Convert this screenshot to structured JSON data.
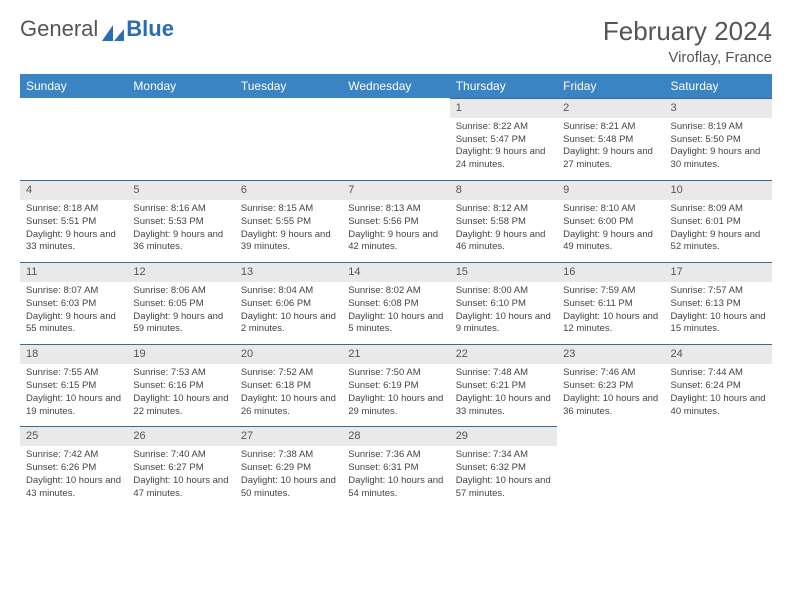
{
  "brand": {
    "part1": "General",
    "part2": "Blue"
  },
  "title": "February 2024",
  "location": "Viroflay, France",
  "colors": {
    "header_bg": "#3a84c4",
    "day_num_bg": "#e9e9e9",
    "day_num_border": "#3a6a9a",
    "brand_blue": "#2a6db5",
    "text": "#444"
  },
  "day_names": [
    "Sunday",
    "Monday",
    "Tuesday",
    "Wednesday",
    "Thursday",
    "Friday",
    "Saturday"
  ],
  "weeks": [
    [
      null,
      null,
      null,
      null,
      {
        "n": "1",
        "sr": "Sunrise: 8:22 AM",
        "ss": "Sunset: 5:47 PM",
        "dl": "Daylight: 9 hours and 24 minutes."
      },
      {
        "n": "2",
        "sr": "Sunrise: 8:21 AM",
        "ss": "Sunset: 5:48 PM",
        "dl": "Daylight: 9 hours and 27 minutes."
      },
      {
        "n": "3",
        "sr": "Sunrise: 8:19 AM",
        "ss": "Sunset: 5:50 PM",
        "dl": "Daylight: 9 hours and 30 minutes."
      }
    ],
    [
      {
        "n": "4",
        "sr": "Sunrise: 8:18 AM",
        "ss": "Sunset: 5:51 PM",
        "dl": "Daylight: 9 hours and 33 minutes."
      },
      {
        "n": "5",
        "sr": "Sunrise: 8:16 AM",
        "ss": "Sunset: 5:53 PM",
        "dl": "Daylight: 9 hours and 36 minutes."
      },
      {
        "n": "6",
        "sr": "Sunrise: 8:15 AM",
        "ss": "Sunset: 5:55 PM",
        "dl": "Daylight: 9 hours and 39 minutes."
      },
      {
        "n": "7",
        "sr": "Sunrise: 8:13 AM",
        "ss": "Sunset: 5:56 PM",
        "dl": "Daylight: 9 hours and 42 minutes."
      },
      {
        "n": "8",
        "sr": "Sunrise: 8:12 AM",
        "ss": "Sunset: 5:58 PM",
        "dl": "Daylight: 9 hours and 46 minutes."
      },
      {
        "n": "9",
        "sr": "Sunrise: 8:10 AM",
        "ss": "Sunset: 6:00 PM",
        "dl": "Daylight: 9 hours and 49 minutes."
      },
      {
        "n": "10",
        "sr": "Sunrise: 8:09 AM",
        "ss": "Sunset: 6:01 PM",
        "dl": "Daylight: 9 hours and 52 minutes."
      }
    ],
    [
      {
        "n": "11",
        "sr": "Sunrise: 8:07 AM",
        "ss": "Sunset: 6:03 PM",
        "dl": "Daylight: 9 hours and 55 minutes."
      },
      {
        "n": "12",
        "sr": "Sunrise: 8:06 AM",
        "ss": "Sunset: 6:05 PM",
        "dl": "Daylight: 9 hours and 59 minutes."
      },
      {
        "n": "13",
        "sr": "Sunrise: 8:04 AM",
        "ss": "Sunset: 6:06 PM",
        "dl": "Daylight: 10 hours and 2 minutes."
      },
      {
        "n": "14",
        "sr": "Sunrise: 8:02 AM",
        "ss": "Sunset: 6:08 PM",
        "dl": "Daylight: 10 hours and 5 minutes."
      },
      {
        "n": "15",
        "sr": "Sunrise: 8:00 AM",
        "ss": "Sunset: 6:10 PM",
        "dl": "Daylight: 10 hours and 9 minutes."
      },
      {
        "n": "16",
        "sr": "Sunrise: 7:59 AM",
        "ss": "Sunset: 6:11 PM",
        "dl": "Daylight: 10 hours and 12 minutes."
      },
      {
        "n": "17",
        "sr": "Sunrise: 7:57 AM",
        "ss": "Sunset: 6:13 PM",
        "dl": "Daylight: 10 hours and 15 minutes."
      }
    ],
    [
      {
        "n": "18",
        "sr": "Sunrise: 7:55 AM",
        "ss": "Sunset: 6:15 PM",
        "dl": "Daylight: 10 hours and 19 minutes."
      },
      {
        "n": "19",
        "sr": "Sunrise: 7:53 AM",
        "ss": "Sunset: 6:16 PM",
        "dl": "Daylight: 10 hours and 22 minutes."
      },
      {
        "n": "20",
        "sr": "Sunrise: 7:52 AM",
        "ss": "Sunset: 6:18 PM",
        "dl": "Daylight: 10 hours and 26 minutes."
      },
      {
        "n": "21",
        "sr": "Sunrise: 7:50 AM",
        "ss": "Sunset: 6:19 PM",
        "dl": "Daylight: 10 hours and 29 minutes."
      },
      {
        "n": "22",
        "sr": "Sunrise: 7:48 AM",
        "ss": "Sunset: 6:21 PM",
        "dl": "Daylight: 10 hours and 33 minutes."
      },
      {
        "n": "23",
        "sr": "Sunrise: 7:46 AM",
        "ss": "Sunset: 6:23 PM",
        "dl": "Daylight: 10 hours and 36 minutes."
      },
      {
        "n": "24",
        "sr": "Sunrise: 7:44 AM",
        "ss": "Sunset: 6:24 PM",
        "dl": "Daylight: 10 hours and 40 minutes."
      }
    ],
    [
      {
        "n": "25",
        "sr": "Sunrise: 7:42 AM",
        "ss": "Sunset: 6:26 PM",
        "dl": "Daylight: 10 hours and 43 minutes."
      },
      {
        "n": "26",
        "sr": "Sunrise: 7:40 AM",
        "ss": "Sunset: 6:27 PM",
        "dl": "Daylight: 10 hours and 47 minutes."
      },
      {
        "n": "27",
        "sr": "Sunrise: 7:38 AM",
        "ss": "Sunset: 6:29 PM",
        "dl": "Daylight: 10 hours and 50 minutes."
      },
      {
        "n": "28",
        "sr": "Sunrise: 7:36 AM",
        "ss": "Sunset: 6:31 PM",
        "dl": "Daylight: 10 hours and 54 minutes."
      },
      {
        "n": "29",
        "sr": "Sunrise: 7:34 AM",
        "ss": "Sunset: 6:32 PM",
        "dl": "Daylight: 10 hours and 57 minutes."
      },
      null,
      null
    ]
  ]
}
